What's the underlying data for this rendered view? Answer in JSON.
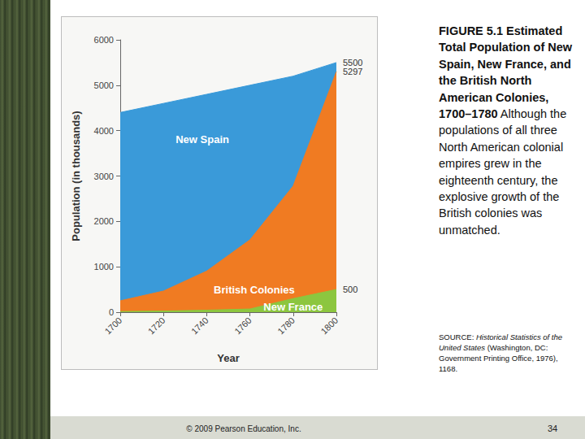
{
  "chart_data": {
    "type": "area",
    "title": "FIGURE 5.1 Estimated Total Population of New Spain, New France, and the British North American Colonies, 1700–1780",
    "caption": "Although the populations of all three North American colonial empires grew in the eighteenth century, the explosive growth of the British colonies was unmatched.",
    "source": {
      "prefix": "SOURCE: ",
      "title": "Historical Statistics of the United States",
      "rest": " (Washington, DC: Government Printing Office, 1976), 1168."
    },
    "footer": {
      "copyright": "© 2009 Pearson Education, Inc.",
      "page": "34"
    },
    "x_label": "Year",
    "y_label": "Population (in thousands)",
    "x": [
      1700,
      1720,
      1740,
      1760,
      1780,
      1800
    ],
    "series": [
      {
        "name": "New Spain",
        "color": "#3a9ad9",
        "values": [
          4400,
          4600,
          4800,
          5000,
          5200,
          5500
        ],
        "label_x": 1738,
        "label_y": 3800
      },
      {
        "name": "British Colonies",
        "color": "#f07b22",
        "values": [
          251,
          466,
          906,
          1594,
          2780,
          5297
        ],
        "label_x": 1762,
        "label_y": 500
      },
      {
        "name": "New France",
        "color": "#8cc63f",
        "values": [
          15,
          25,
          45,
          70,
          300,
          500
        ],
        "label_x": 1780,
        "label_y": 120
      }
    ],
    "xlim": [
      1700,
      1800
    ],
    "xticks": [
      1700,
      1720,
      1740,
      1760,
      1780,
      1800
    ],
    "ylim": [
      0,
      6000
    ],
    "yticks": [
      0,
      1000,
      2000,
      3000,
      4000,
      5000,
      6000
    ],
    "grid": false
  }
}
